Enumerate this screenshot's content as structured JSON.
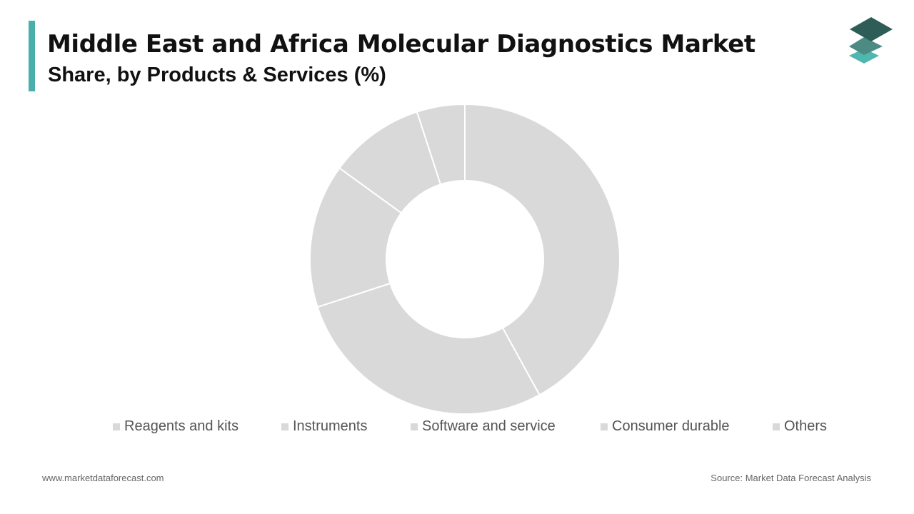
{
  "header": {
    "title": "Middle East and Africa Molecular Diagnostics Market",
    "subtitle": "Share, by Products & Services (%)"
  },
  "colors": {
    "accent": "#4aaeaa",
    "slice": "#d9d9d9",
    "slice_border": "#ffffff",
    "legend_swatch": "#d9d9d9",
    "logo_top": "#2e5d58",
    "logo_mid": "#4e8a84",
    "logo_bottom": "#4fb8ae"
  },
  "logo_icon": "stacked-layers-icon",
  "chart_data": {
    "type": "pie",
    "style": "donut",
    "title": "Middle East and Africa Molecular Diagnostics Market",
    "subtitle": "Share, by Products & Services (%)",
    "categories": [
      "Reagents and kits",
      "Instruments",
      "Software and service",
      "Consumer durable",
      "Others"
    ],
    "values": [
      42,
      28,
      15,
      10,
      5
    ],
    "legend_position": "bottom"
  },
  "footer": {
    "website": "www.marketdataforecast.com",
    "source": "Source: Market Data Forecast Analysis"
  }
}
